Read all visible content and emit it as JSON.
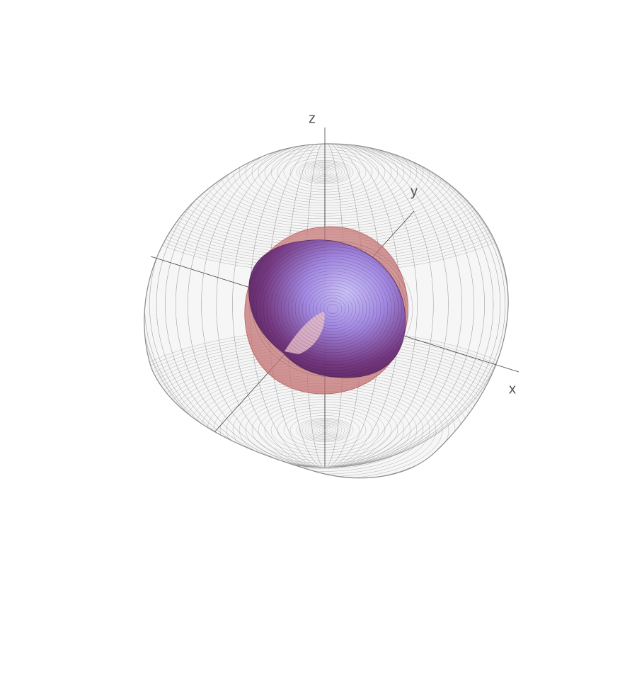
{
  "axes": {
    "x": "x",
    "y": "y",
    "z": "z"
  }
}
